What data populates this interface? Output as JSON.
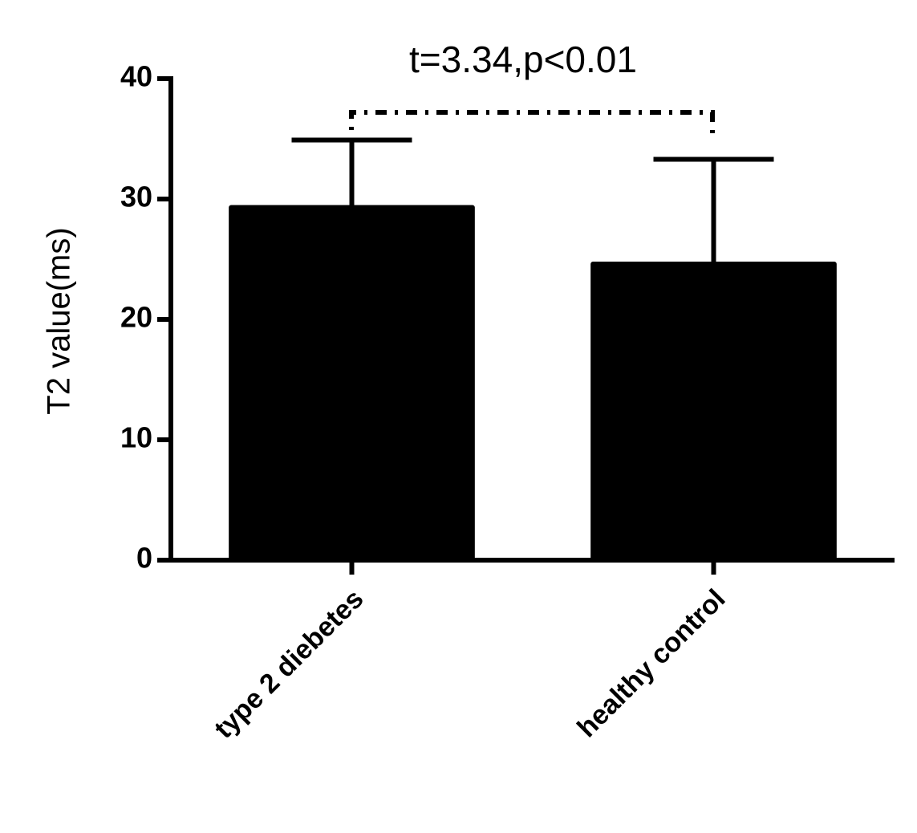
{
  "chart_data": {
    "type": "bar",
    "title": "t=3.34,p<0.01",
    "y_label": "T2 value(ms)",
    "categories": [
      "type 2 diebetes",
      "healthy control"
    ],
    "values": [
      29.5,
      24.8
    ],
    "errors": [
      5.4,
      8.5
    ],
    "color": "#000000",
    "ylim": [
      0,
      40
    ],
    "yticks": [
      0,
      10,
      20,
      30,
      40
    ],
    "grid": false
  }
}
